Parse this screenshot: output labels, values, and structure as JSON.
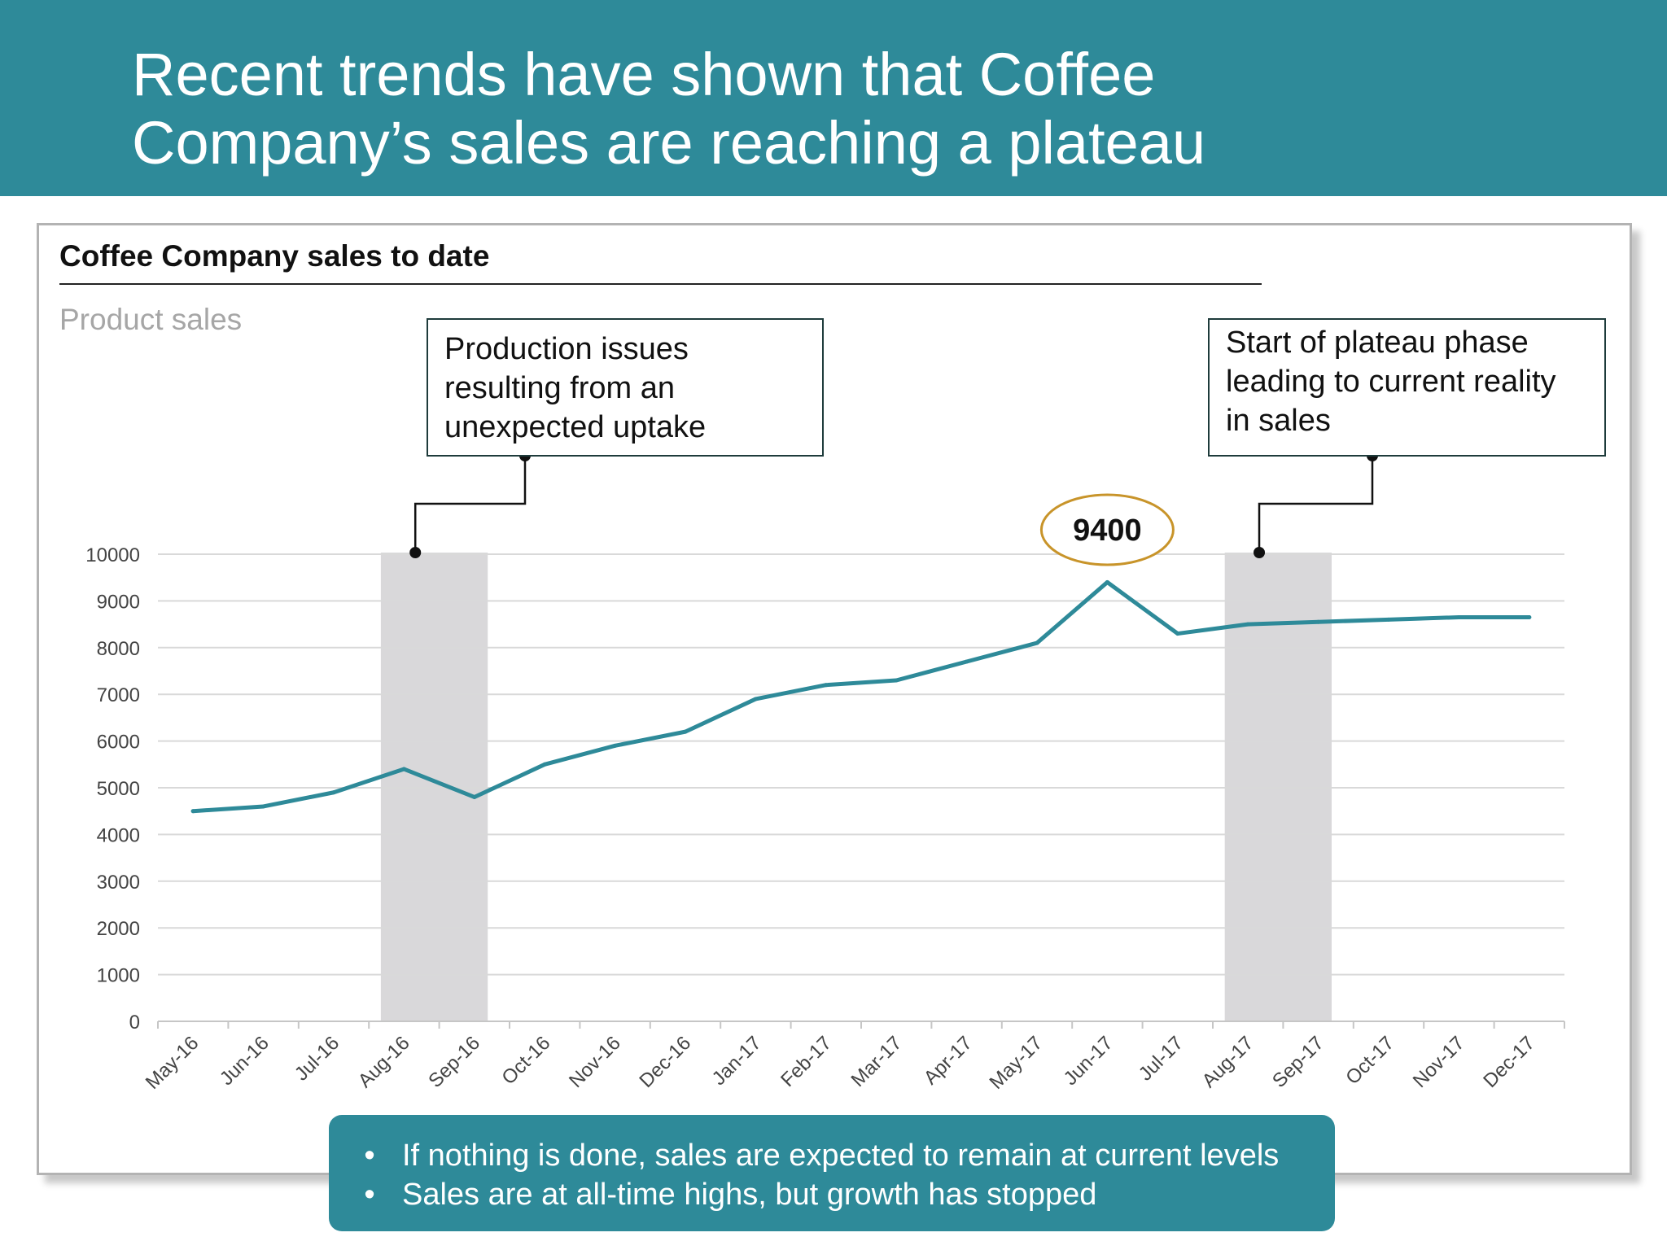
{
  "header": {
    "title_lines": [
      "Recent trends have shown that Coffee",
      "Company’s sales are reaching a plateau"
    ]
  },
  "panel": {
    "title": "Coffee Company sales to date",
    "subtitle": "Product sales"
  },
  "annotations": [
    {
      "lines": [
        "Production issues",
        "resulting from an",
        "unexpected uptake"
      ],
      "target": "Aug-16"
    },
    {
      "lines": [
        "Start of plateau phase",
        "leading to current reality",
        "in sales"
      ],
      "target": "Aug-17"
    }
  ],
  "peak_label": "9400",
  "takeaways": {
    "bullet_symbol": "•",
    "items": [
      "If nothing is done, sales are expected to remain at current levels",
      "Sales are at all-time highs, but growth has stopped"
    ]
  },
  "colors": {
    "header": "#2e8a99",
    "line": "#2e8a99",
    "highlight_band": "#d9d8da",
    "peak_outline": "#c8942a",
    "grid": "#d9d9d9"
  },
  "chart_data": {
    "type": "line",
    "title": "Coffee Company sales to date",
    "ylabel": "Product sales",
    "xlabel": "",
    "categories": [
      "May-16",
      "Jun-16",
      "Jul-16",
      "Aug-16",
      "Sep-16",
      "Oct-16",
      "Nov-16",
      "Dec-16",
      "Jan-17",
      "Feb-17",
      "Mar-17",
      "Apr-17",
      "May-17",
      "Jun-17",
      "Jul-17",
      "Aug-17",
      "Sep-17",
      "Oct-17",
      "Nov-17",
      "Dec-17"
    ],
    "series": [
      {
        "name": "Product sales",
        "values": [
          4500,
          4600,
          4900,
          5400,
          4800,
          5500,
          5900,
          6200,
          6900,
          7200,
          7300,
          7700,
          8100,
          9400,
          8300,
          8500,
          8550,
          8600,
          8650,
          8650
        ]
      }
    ],
    "yticks": [
      0,
      1000,
      2000,
      3000,
      4000,
      5000,
      6000,
      7000,
      8000,
      9000,
      10000
    ],
    "ylim": [
      0,
      10000
    ],
    "highlight_ranges": [
      [
        "Aug-16",
        "Sep-16"
      ],
      [
        "Aug-17",
        "Sep-17"
      ]
    ],
    "peak": {
      "category": "Jun-17",
      "value": 9400
    },
    "grid": true,
    "legend": "none"
  }
}
